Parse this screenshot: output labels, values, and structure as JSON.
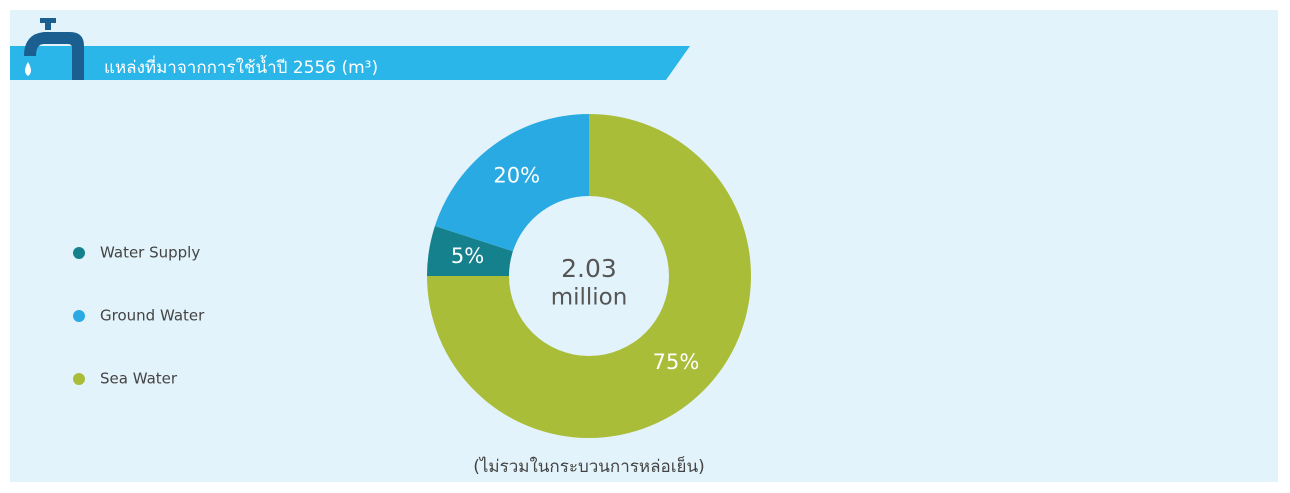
{
  "chart_data": {
    "type": "pie",
    "title": "แหล่งที่มาจากการใช้น้ำปี 2556 (m³)",
    "categories": [
      "Water Supply",
      "Ground Water",
      "Sea Water"
    ],
    "values": [
      5,
      20,
      75
    ],
    "value_labels": [
      "5%",
      "20%",
      "75%"
    ],
    "colors": [
      "#14818c",
      "#2aaae2",
      "#a9bd38"
    ],
    "center_text": [
      "2.03",
      "million"
    ],
    "footnote": "(ไม่รวมในกระบวนการหล่อเย็น)",
    "legend": "left"
  }
}
